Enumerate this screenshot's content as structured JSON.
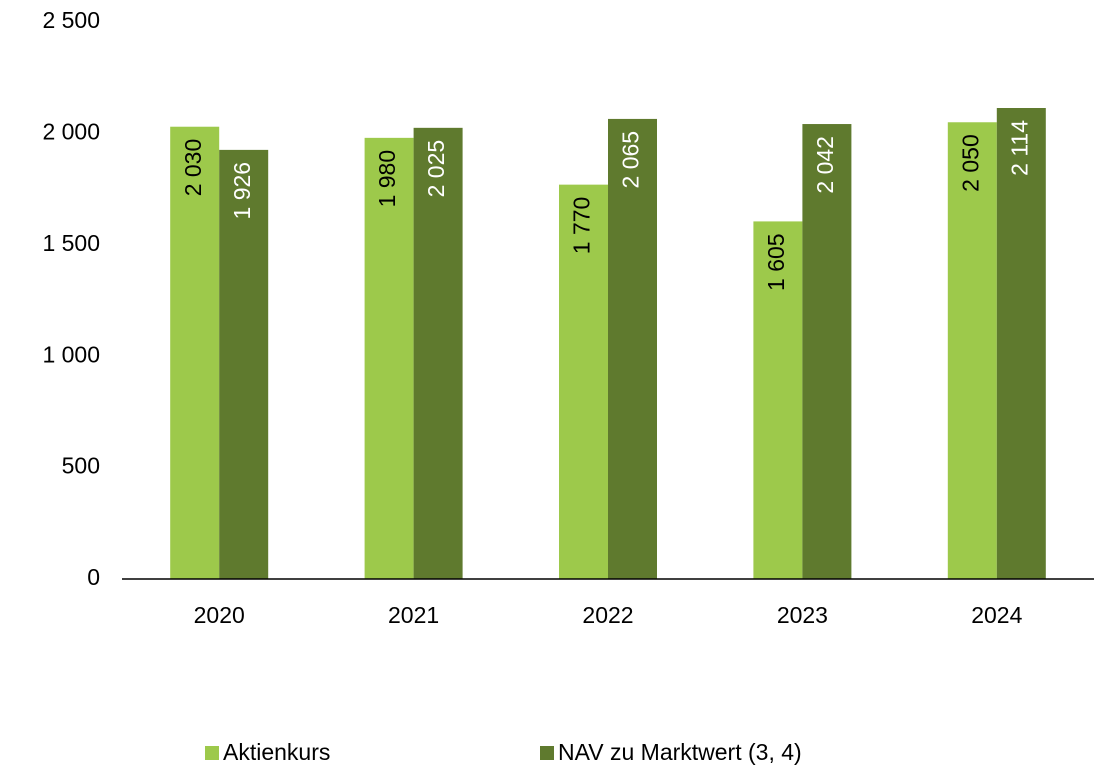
{
  "chart_data": {
    "type": "bar",
    "categories": [
      "2020",
      "2021",
      "2022",
      "2023",
      "2024"
    ],
    "series": [
      {
        "name": "Aktienkurs",
        "color": "#9dc94b",
        "values": [
          2030,
          1980,
          1770,
          1605,
          2050
        ],
        "value_labels": [
          "2 030",
          "1 980",
          "1 770",
          "1 605",
          "2 050"
        ]
      },
      {
        "name": "NAV zu Marktwert (3, 4)",
        "color": "#5f7a2e",
        "values": [
          1926,
          2025,
          2065,
          2042,
          2114
        ],
        "value_labels": [
          "1 926",
          "2 025",
          "2 065",
          "2 042",
          "2 114"
        ]
      }
    ],
    "ylim": [
      0,
      2500
    ],
    "yticks": [
      0,
      500,
      {
        "value": 1000,
        "label": "1 000"
      },
      {
        "value": 1500,
        "label": "1 500"
      },
      {
        "value": 2000,
        "label": "2 000"
      },
      {
        "value": 2500,
        "label": "2 500"
      }
    ],
    "grid": false,
    "legend": "bottom"
  }
}
